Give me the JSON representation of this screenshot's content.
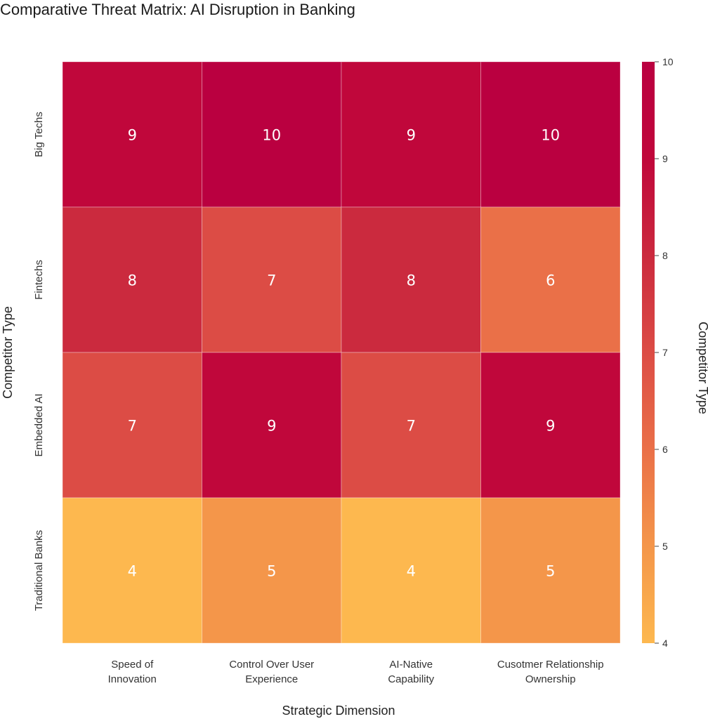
{
  "chart_data": {
    "type": "heatmap",
    "title": "Comparative Threat Matrix: AI Disruption in Banking",
    "xlabel": "Strategic Dimension",
    "ylabel": "Competitor Type",
    "colorbar_label": "Competitor Type",
    "x_categories": [
      [
        "Speed of",
        "Innovation"
      ],
      [
        "Control Over User",
        "Experience"
      ],
      [
        "AI-Native",
        "Capability"
      ],
      [
        "Cusotmer Relationship",
        "Ownership"
      ]
    ],
    "y_categories": [
      "Big Techs",
      "Fintechs",
      "Embedded AI",
      "Traditional Banks"
    ],
    "values": [
      [
        9,
        10,
        9,
        10
      ],
      [
        8,
        7,
        8,
        6
      ],
      [
        7,
        9,
        7,
        9
      ],
      [
        4,
        5,
        4,
        5
      ]
    ],
    "color_range": [
      4,
      10
    ],
    "colorbar_ticks": [
      4,
      5,
      6,
      7,
      8,
      9,
      10
    ],
    "colorscale": [
      "#fdb84f",
      "#f4964a",
      "#ea7048",
      "#dc4c45",
      "#cb2a3e",
      "#c0073b",
      "#ba0040"
    ],
    "grid": false,
    "colorbar_placement": "right"
  }
}
